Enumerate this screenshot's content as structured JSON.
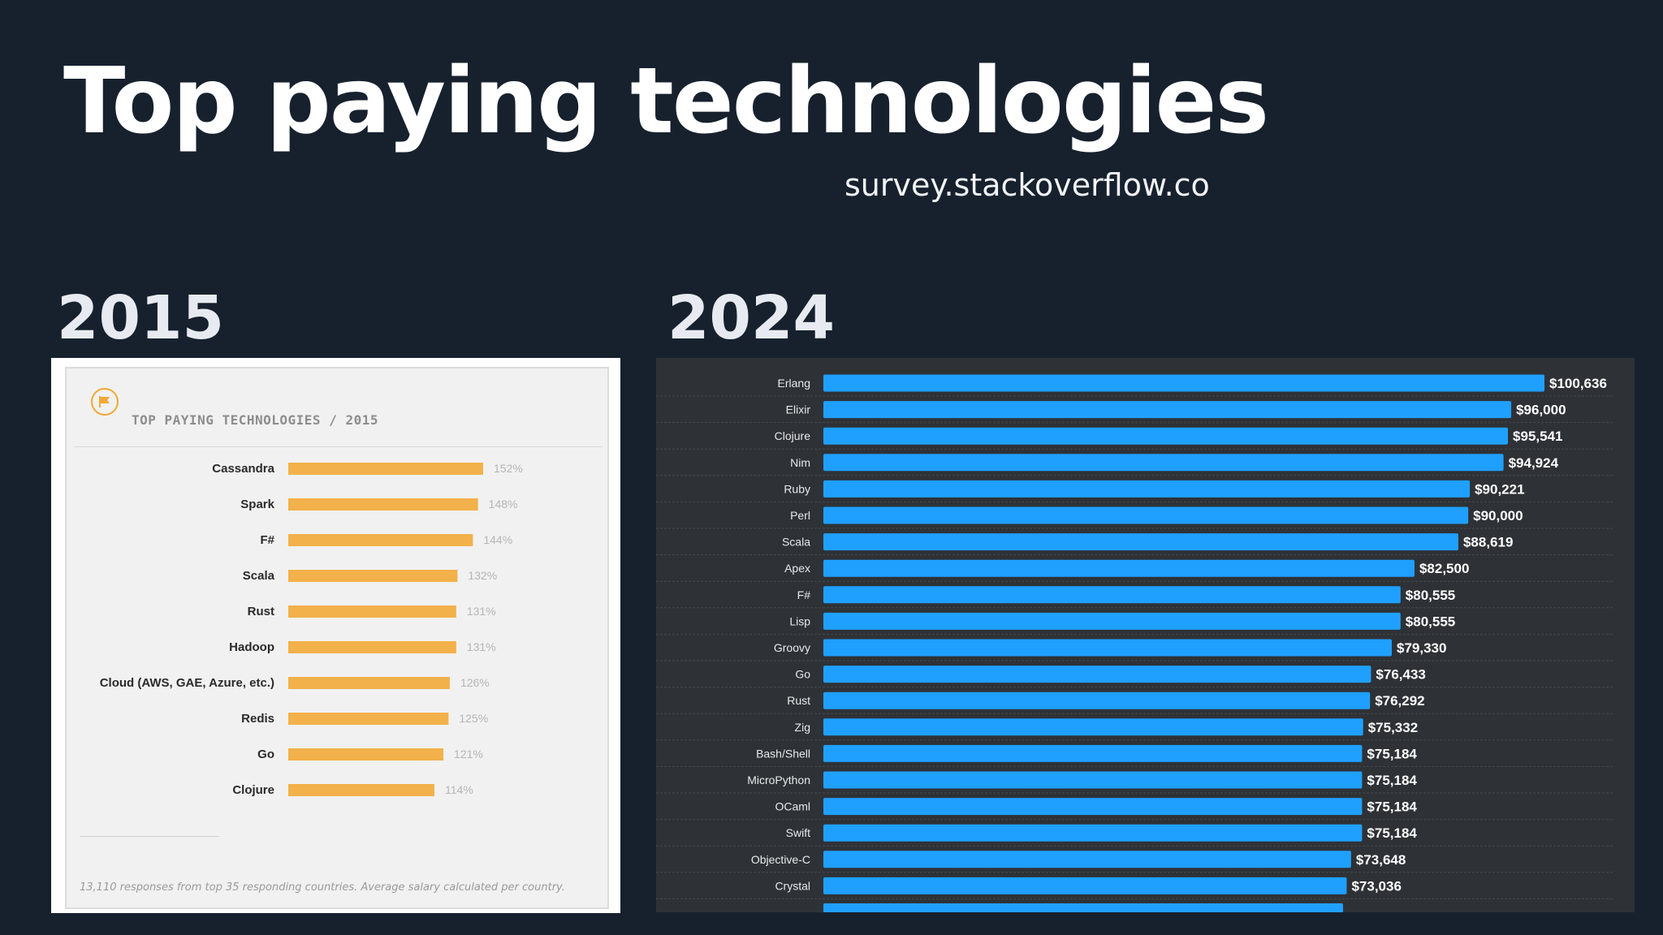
{
  "title": "Top paying technologies",
  "subtitle": "survey.stackoverflow.co",
  "left": {
    "year": "2015",
    "heading": "TOP PAYING TECHNOLOGIES / 2015",
    "footnote": "13,110 responses from top 35 responding countries. Average salary calculated per country."
  },
  "right": {
    "year": "2024"
  },
  "colors": {
    "background": "#17212e",
    "bar_2015": "#f2b14a",
    "bar_2024": "#1fa0ff",
    "panel_2024": "#2e3236",
    "icon": "flag-icon"
  },
  "chart_data": [
    {
      "type": "bar",
      "orientation": "horizontal",
      "title": "TOP PAYING TECHNOLOGIES / 2015",
      "categories": [
        "Cassandra",
        "Spark",
        "F#",
        "Scala",
        "Rust",
        "Hadoop",
        "Cloud (AWS, GAE, Azure, etc.)",
        "Redis",
        "Go",
        "Clojure"
      ],
      "values": [
        152,
        148,
        144,
        132,
        131,
        131,
        126,
        125,
        121,
        114
      ],
      "value_labels": [
        "152%",
        "148%",
        "144%",
        "132%",
        "131%",
        "131%",
        "126%",
        "125%",
        "121%",
        "114%"
      ],
      "grid": false
    },
    {
      "type": "bar",
      "orientation": "horizontal",
      "categories": [
        "Erlang",
        "Elixir",
        "Clojure",
        "Nim",
        "Ruby",
        "Perl",
        "Scala",
        "Apex",
        "F#",
        "Lisp",
        "Groovy",
        "Go",
        "Rust",
        "Zig",
        "Bash/Shell",
        "MicroPython",
        "OCaml",
        "Swift",
        "Objective-C",
        "Crystal"
      ],
      "values": [
        100636,
        96000,
        95541,
        94924,
        90221,
        90000,
        88619,
        82500,
        80555,
        80555,
        79330,
        76433,
        76292,
        75332,
        75184,
        75184,
        75184,
        75184,
        73648,
        73036
      ],
      "value_labels": [
        "$100,636",
        "$96,000",
        "$95,541",
        "$94,924",
        "$90,221",
        "$90,000",
        "$88,619",
        "$82,500",
        "$80,555",
        "$80,555",
        "$79,330",
        "$76,433",
        "$76,292",
        "$75,332",
        "$75,184",
        "$75,184",
        "$75,184",
        "$75,184",
        "$73,648",
        "$73,036"
      ],
      "grid": true
    }
  ]
}
